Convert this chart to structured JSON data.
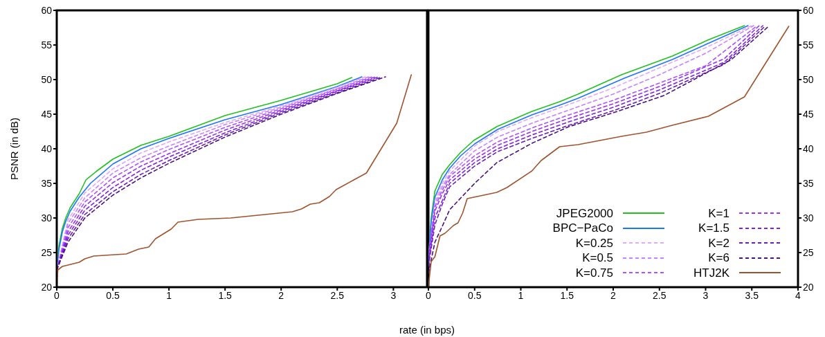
{
  "chart_data": [
    {
      "type": "line",
      "ylabel": "PSNR (in dB)",
      "xlabel": "rate (in bps)",
      "xlim": [
        0,
        3.3
      ],
      "xticks": [
        0,
        0.5,
        1,
        1.5,
        2,
        2.5,
        3
      ],
      "ylim": [
        20,
        60
      ],
      "yticks": [
        20,
        25,
        30,
        35,
        40,
        45,
        50,
        55,
        60
      ],
      "grid": false,
      "legend": false,
      "series": [
        {
          "color": "#1fc01f",
          "line_style": "solid",
          "x": [
            0,
            0.02,
            0.05,
            0.08,
            0.12,
            0.2,
            0.26,
            0.35,
            0.5,
            0.75,
            1,
            1.25,
            1.5,
            2,
            2.5,
            2.63
          ],
          "values": [
            23,
            26,
            28.5,
            30,
            31.5,
            33.5,
            35.5,
            36.7,
            38.5,
            40.5,
            41.8,
            43.3,
            44.8,
            47,
            49.4,
            50.3
          ]
        },
        {
          "color": "#1a75ff",
          "line_style": "solid",
          "x": [
            0,
            0.02,
            0.05,
            0.08,
            0.12,
            0.2,
            0.3,
            0.5,
            0.75,
            1,
            1.5,
            2,
            2.5,
            2.72
          ],
          "values": [
            22.5,
            25.5,
            28,
            29.5,
            31,
            33,
            35,
            37.8,
            40,
            41.5,
            44.2,
            46.4,
            49,
            50.4
          ]
        },
        {
          "color": "#e0a8ff",
          "line_style": "dashed",
          "x": [
            0,
            0.1,
            0.25,
            0.5,
            0.75,
            1,
            1.5,
            2,
            2.5,
            2.75
          ],
          "values": [
            22.5,
            29.7,
            33.6,
            37.1,
            39.4,
            41,
            43.8,
            46.2,
            48.9,
            50.4
          ]
        },
        {
          "color": "#c880ff",
          "line_style": "dashed",
          "x": [
            0,
            0.1,
            0.25,
            0.5,
            0.75,
            1,
            1.5,
            2,
            2.5,
            2.78
          ],
          "values": [
            22.5,
            29.2,
            32.9,
            36.5,
            38.7,
            40.4,
            43.5,
            46,
            48.7,
            50.4
          ]
        },
        {
          "color": "#b050ff",
          "line_style": "dashed",
          "x": [
            0,
            0.1,
            0.25,
            0.5,
            0.75,
            1,
            1.5,
            2,
            2.5,
            2.81
          ],
          "values": [
            22.5,
            28.6,
            32.3,
            35.8,
            38.1,
            39.9,
            43.1,
            45.8,
            48.6,
            50.4
          ]
        },
        {
          "color": "#9a30f0",
          "line_style": "dashed",
          "x": [
            0,
            0.1,
            0.25,
            0.5,
            0.75,
            1,
            1.5,
            2,
            2.5,
            2.84
          ],
          "values": [
            22.5,
            28,
            31.7,
            35.1,
            37.5,
            39.3,
            42.7,
            45.6,
            48.4,
            50.4
          ]
        },
        {
          "color": "#8020e0",
          "line_style": "dashed",
          "x": [
            0,
            0.1,
            0.25,
            0.5,
            0.75,
            1,
            1.5,
            2,
            2.5,
            2.87
          ],
          "values": [
            22.5,
            27.5,
            31.1,
            34.4,
            36.9,
            38.8,
            42.3,
            45.4,
            48.3,
            50.4
          ]
        },
        {
          "color": "#6a1cb8",
          "line_style": "dashed",
          "x": [
            0,
            0.1,
            0.25,
            0.5,
            0.75,
            1,
            1.5,
            2,
            2.5,
            2.9
          ],
          "values": [
            22.5,
            27,
            30.5,
            33.8,
            36.3,
            38.3,
            42,
            45.2,
            48.1,
            50.4
          ]
        },
        {
          "color": "#4a1080",
          "line_style": "dashed",
          "x": [
            0,
            0.1,
            0.25,
            0.5,
            0.75,
            1,
            1.5,
            2,
            2.5,
            2.93
          ],
          "values": [
            22.5,
            26.5,
            30,
            33.3,
            35.8,
            37.9,
            41.7,
            45,
            48,
            50.4
          ]
        },
        {
          "color": "#a0522d",
          "line_style": "solid",
          "x": [
            0,
            0.01,
            0.05,
            0.2,
            0.25,
            0.33,
            0.52,
            0.62,
            0.73,
            0.82,
            0.88,
            1.02,
            1.08,
            1.26,
            1.55,
            2.1,
            2.18,
            2.26,
            2.34,
            2.43,
            2.49,
            2.76,
            3.03,
            3.16
          ],
          "values": [
            20.1,
            22.5,
            23,
            23.6,
            24.1,
            24.5,
            24.7,
            24.8,
            25.5,
            25.8,
            27,
            28.4,
            29.4,
            29.8,
            30,
            30.9,
            31.3,
            32,
            32.2,
            33.1,
            34.1,
            36.5,
            43.7,
            50.7
          ]
        }
      ]
    },
    {
      "type": "line",
      "xlim": [
        0,
        4
      ],
      "xticks": [
        0,
        0.5,
        1,
        1.5,
        2,
        2.5,
        3,
        3.5,
        4
      ],
      "ylim": [
        20,
        60
      ],
      "yticks": [
        20,
        25,
        30,
        35,
        40,
        45,
        50,
        55,
        60
      ],
      "grid": false,
      "legend": "bottom right",
      "series": [
        {
          "name": "JPEG2000",
          "color": "#1fc01f",
          "line_style": "solid",
          "x": [
            0,
            0.03,
            0.07,
            0.15,
            0.23,
            0.35,
            0.49,
            0.74,
            1.12,
            1.42,
            1.62,
            2.09,
            2.64,
            3.04,
            3.42
          ],
          "values": [
            24,
            30,
            33.9,
            36.3,
            37.7,
            39.5,
            41.2,
            43.2,
            45.4,
            46.8,
            47.9,
            50.7,
            53.4,
            55.8,
            57.8
          ]
        },
        {
          "name": "BPC−PaCo",
          "color": "#1a75ff",
          "line_style": "solid",
          "x": [
            0,
            0.03,
            0.07,
            0.15,
            0.23,
            0.35,
            0.5,
            0.75,
            1.12,
            1.42,
            1.62,
            2.12,
            2.64,
            3.04,
            3.46
          ],
          "values": [
            23.5,
            29.5,
            33,
            35.5,
            37.2,
            39,
            40.7,
            42.8,
            44.9,
            46.3,
            47.3,
            50.2,
            52.9,
            55.3,
            57.8
          ]
        },
        {
          "name": "K=0.25",
          "color": "#e0a8ff",
          "line_style": "dashed",
          "x": [
            0,
            0.07,
            0.15,
            0.23,
            0.5,
            0.75,
            1.12,
            1.5,
            2,
            2.5,
            3,
            3.5
          ],
          "values": [
            23.5,
            32.5,
            35,
            36.8,
            40.4,
            42.5,
            44.5,
            46.3,
            48.8,
            51.7,
            54.6,
            57.8
          ]
        },
        {
          "name": "K=0.5",
          "color": "#c880ff",
          "line_style": "dashed",
          "x": [
            0,
            0.07,
            0.15,
            0.23,
            0.5,
            0.75,
            1.12,
            1.5,
            2,
            2.5,
            3,
            3.52
          ],
          "values": [
            24.5,
            32,
            34.5,
            36.3,
            39.7,
            41.7,
            43.7,
            45.5,
            47.9,
            50.7,
            53.8,
            57.8
          ]
        },
        {
          "name": "K=0.75",
          "color": "#b050ff",
          "line_style": "dashed",
          "x": [
            0,
            0.07,
            0.15,
            0.23,
            0.5,
            0.75,
            1.12,
            1.5,
            2,
            2.5,
            3,
            3.56
          ],
          "values": [
            24.5,
            31.5,
            34,
            36,
            39,
            41,
            43,
            44.8,
            47,
            49.5,
            52,
            57.8
          ]
        },
        {
          "name": "K=1",
          "color": "#9a30f0",
          "line_style": "dashed",
          "x": [
            0,
            0.07,
            0.15,
            0.23,
            0.5,
            0.75,
            1.12,
            1.5,
            2,
            2.5,
            3.2,
            3.58
          ],
          "values": [
            24,
            31,
            33.5,
            35.5,
            38.5,
            40.5,
            42.5,
            44.3,
            46.5,
            49,
            53,
            57.8
          ]
        },
        {
          "name": "K=1.5",
          "color": "#8020e0",
          "line_style": "dashed",
          "x": [
            0,
            0.07,
            0.15,
            0.23,
            0.5,
            0.75,
            1.12,
            1.5,
            2,
            2.5,
            3.2,
            3.62
          ],
          "values": [
            23.5,
            30,
            32.5,
            35,
            38,
            40,
            42,
            43.8,
            46,
            48.5,
            52.5,
            57.8
          ]
        },
        {
          "name": "K=2",
          "color": "#6a1cb8",
          "line_style": "dashed",
          "x": [
            0,
            0.07,
            0.15,
            0.23,
            0.5,
            0.75,
            1.12,
            1.5,
            2,
            2.5,
            3.2,
            3.65
          ],
          "values": [
            23,
            29,
            32,
            34.5,
            37.5,
            39.6,
            41.5,
            43.3,
            45.5,
            48,
            52.2,
            57.8
          ]
        },
        {
          "name": "K=6",
          "color": "#4a1080",
          "line_style": "dashed",
          "x": [
            0,
            0.07,
            0.15,
            0.23,
            0.5,
            0.74,
            1.12,
            1.52,
            2,
            2.55,
            3.28,
            3.69
          ],
          "values": [
            22,
            26.5,
            28.8,
            31.2,
            35,
            38,
            40.8,
            43.2,
            45.2,
            47.7,
            52.9,
            57.8
          ]
        },
        {
          "name": "HTJ2K",
          "color": "#a0522d",
          "line_style": "solid",
          "x": [
            0,
            0.03,
            0.07,
            0.125,
            0.18,
            0.27,
            0.32,
            0.37,
            0.42,
            0.74,
            0.85,
            1.12,
            1.22,
            1.42,
            1.62,
            2.09,
            2.36,
            2.64,
            3.03,
            3.42,
            3.9
          ],
          "values": [
            20.1,
            23.7,
            24.4,
            27.4,
            27.8,
            28.9,
            29.3,
            30.7,
            32.8,
            33.7,
            34.4,
            36.8,
            38.3,
            40.3,
            40.6,
            41.8,
            42.4,
            43.4,
            44.7,
            47.5,
            57.7
          ]
        }
      ]
    }
  ]
}
